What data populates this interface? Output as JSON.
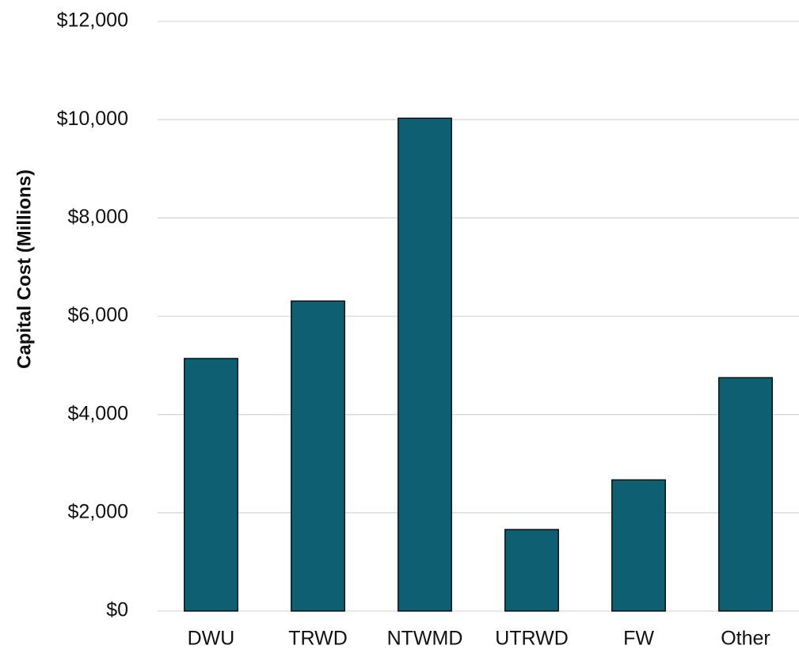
{
  "chart_data": {
    "type": "bar",
    "ylabel": "Capital Cost (Millions)",
    "categories": [
      "DWU",
      "TRWD",
      "NTWMD",
      "UTRWD",
      "FW",
      "Other"
    ],
    "values": [
      5140,
      6310,
      10030,
      1660,
      2670,
      4750
    ],
    "color": "#0f5f73",
    "ylim": [
      0,
      12000
    ],
    "yticks": [
      {
        "value": 0,
        "label": "$0"
      },
      {
        "value": 2000,
        "label": "$2,000"
      },
      {
        "value": 4000,
        "label": "$4,000"
      },
      {
        "value": 6000,
        "label": "$6,000"
      },
      {
        "value": 8000,
        "label": "$8,000"
      },
      {
        "value": 10000,
        "label": "$10,000"
      },
      {
        "value": 12000,
        "label": "$12,000"
      }
    ],
    "grid": true
  }
}
